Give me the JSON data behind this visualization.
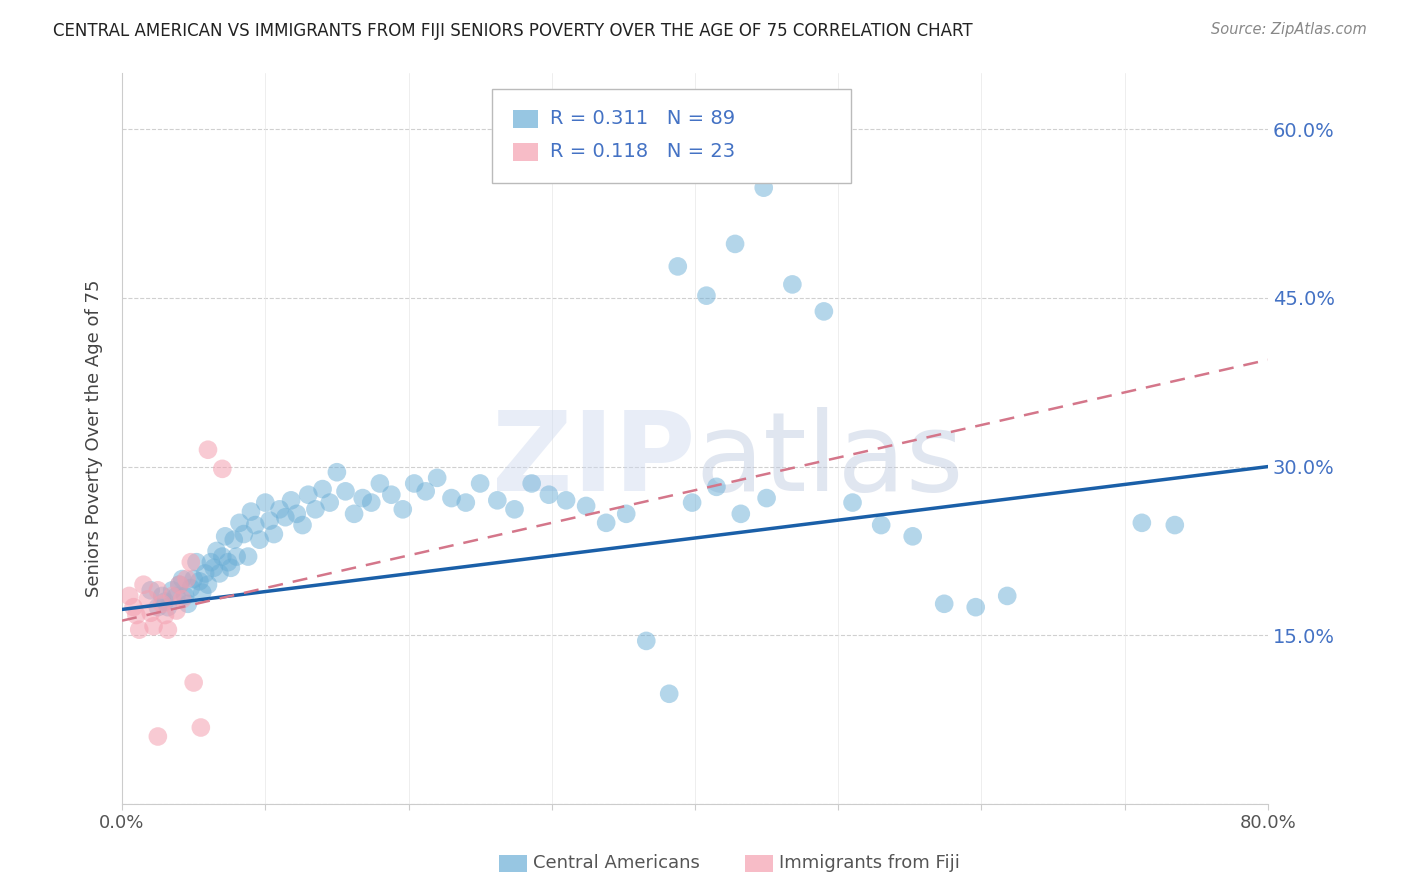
{
  "title": "CENTRAL AMERICAN VS IMMIGRANTS FROM FIJI SENIORS POVERTY OVER THE AGE OF 75 CORRELATION CHART",
  "source": "Source: ZipAtlas.com",
  "ylabel": "Seniors Poverty Over the Age of 75",
  "R_blue": 0.311,
  "N_blue": 89,
  "R_pink": 0.118,
  "N_pink": 23,
  "blue_color": "#6baed6",
  "pink_color": "#f4a0b0",
  "trend_blue_color": "#1a5fa8",
  "trend_pink_color": "#d4768a",
  "xmin": 0.0,
  "xmax": 0.8,
  "ymin": 0.0,
  "ymax": 0.65,
  "yticks": [
    0.0,
    0.15,
    0.3,
    0.45,
    0.6
  ],
  "xticks": [
    0.0,
    0.1,
    0.2,
    0.3,
    0.4,
    0.5,
    0.6,
    0.7,
    0.8
  ],
  "ytick_labels": [
    "",
    "15.0%",
    "30.0%",
    "45.0%",
    "60.0%"
  ],
  "legend_label_blue": "Central Americans",
  "legend_label_pink": "Immigrants from Fiji",
  "blue_trend_x0": 0.0,
  "blue_trend_y0": 0.173,
  "blue_trend_x1": 0.8,
  "blue_trend_y1": 0.3,
  "pink_trend_x0": 0.0,
  "pink_trend_y0": 0.163,
  "pink_trend_x1": 0.8,
  "pink_trend_y1": 0.395,
  "blue_x": [
    0.02,
    0.025,
    0.028,
    0.03,
    0.032,
    0.035,
    0.038,
    0.04,
    0.042,
    0.044,
    0.046,
    0.048,
    0.05,
    0.052,
    0.054,
    0.056,
    0.058,
    0.06,
    0.062,
    0.064,
    0.066,
    0.068,
    0.07,
    0.072,
    0.074,
    0.076,
    0.078,
    0.08,
    0.082,
    0.085,
    0.088,
    0.09,
    0.093,
    0.096,
    0.1,
    0.103,
    0.106,
    0.11,
    0.114,
    0.118,
    0.122,
    0.126,
    0.13,
    0.135,
    0.14,
    0.145,
    0.15,
    0.156,
    0.162,
    0.168,
    0.174,
    0.18,
    0.188,
    0.196,
    0.204,
    0.212,
    0.22,
    0.23,
    0.24,
    0.25,
    0.262,
    0.274,
    0.286,
    0.298,
    0.31,
    0.324,
    0.338,
    0.352,
    0.366,
    0.382,
    0.398,
    0.415,
    0.432,
    0.45,
    0.468,
    0.388,
    0.408,
    0.428,
    0.448,
    0.468,
    0.49,
    0.51,
    0.53,
    0.552,
    0.574,
    0.596,
    0.618,
    0.712,
    0.735
  ],
  "blue_y": [
    0.19,
    0.175,
    0.185,
    0.18,
    0.175,
    0.19,
    0.185,
    0.195,
    0.2,
    0.185,
    0.178,
    0.192,
    0.2,
    0.215,
    0.198,
    0.188,
    0.205,
    0.195,
    0.215,
    0.21,
    0.225,
    0.205,
    0.22,
    0.238,
    0.215,
    0.21,
    0.235,
    0.22,
    0.25,
    0.24,
    0.22,
    0.26,
    0.248,
    0.235,
    0.268,
    0.252,
    0.24,
    0.262,
    0.255,
    0.27,
    0.258,
    0.248,
    0.275,
    0.262,
    0.28,
    0.268,
    0.295,
    0.278,
    0.258,
    0.272,
    0.268,
    0.285,
    0.275,
    0.262,
    0.285,
    0.278,
    0.29,
    0.272,
    0.268,
    0.285,
    0.27,
    0.262,
    0.285,
    0.275,
    0.27,
    0.265,
    0.25,
    0.258,
    0.145,
    0.098,
    0.268,
    0.282,
    0.258,
    0.272,
    0.462,
    0.478,
    0.452,
    0.498,
    0.548,
    0.562,
    0.438,
    0.268,
    0.248,
    0.238,
    0.178,
    0.175,
    0.185,
    0.25,
    0.248
  ],
  "pink_x": [
    0.005,
    0.008,
    0.01,
    0.012,
    0.015,
    0.018,
    0.02,
    0.022,
    0.025,
    0.028,
    0.03,
    0.032,
    0.035,
    0.038,
    0.04,
    0.042,
    0.045,
    0.048,
    0.05,
    0.055,
    0.06,
    0.07,
    0.025
  ],
  "pink_y": [
    0.185,
    0.175,
    0.168,
    0.155,
    0.195,
    0.182,
    0.17,
    0.158,
    0.19,
    0.178,
    0.168,
    0.155,
    0.185,
    0.172,
    0.195,
    0.182,
    0.2,
    0.215,
    0.108,
    0.068,
    0.315,
    0.298,
    0.06
  ]
}
